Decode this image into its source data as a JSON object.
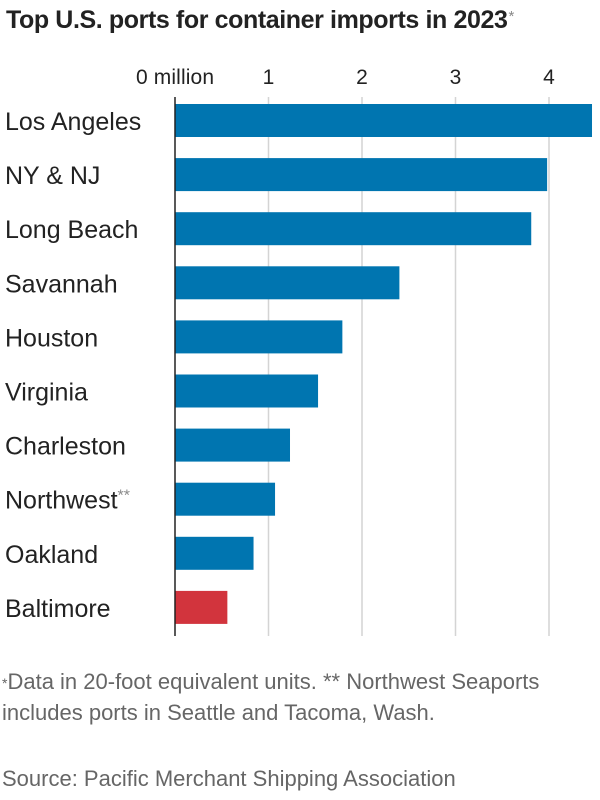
{
  "chart_data": {
    "type": "bar",
    "orientation": "horizontal",
    "title": "Top U.S. ports for container imports in 2023",
    "title_marker": "*",
    "xlim": [
      0,
      4.45
    ],
    "ticks": [
      {
        "value": 0,
        "label": "0 million"
      },
      {
        "value": 1,
        "label": "1"
      },
      {
        "value": 2,
        "label": "2"
      },
      {
        "value": 3,
        "label": "3"
      },
      {
        "value": 4,
        "label": "4"
      }
    ],
    "grid": true,
    "categories": [
      "Los Angeles",
      "NY & NJ",
      "Long Beach",
      "Savannah",
      "Houston",
      "Virginia",
      "Charleston",
      "Northwest",
      "Oakland",
      "Baltimore"
    ],
    "category_markers": [
      "",
      "",
      "",
      "",
      "",
      "",
      "",
      "**",
      "",
      ""
    ],
    "values": [
      4.46,
      3.98,
      3.81,
      2.4,
      1.79,
      1.53,
      1.23,
      1.07,
      0.84,
      0.56
    ],
    "colors": [
      "#0075b0",
      "#0075b0",
      "#0075b0",
      "#0075b0",
      "#0075b0",
      "#0075b0",
      "#0075b0",
      "#0075b0",
      "#0075b0",
      "#d2343d"
    ]
  },
  "footnote": {
    "marker": "*",
    "text": "Data in 20-foot equivalent units. ** Northwest Seaports includes ports in Seattle and Tacoma, Wash."
  },
  "source": "Source: Pacific Merchant Shipping Association"
}
